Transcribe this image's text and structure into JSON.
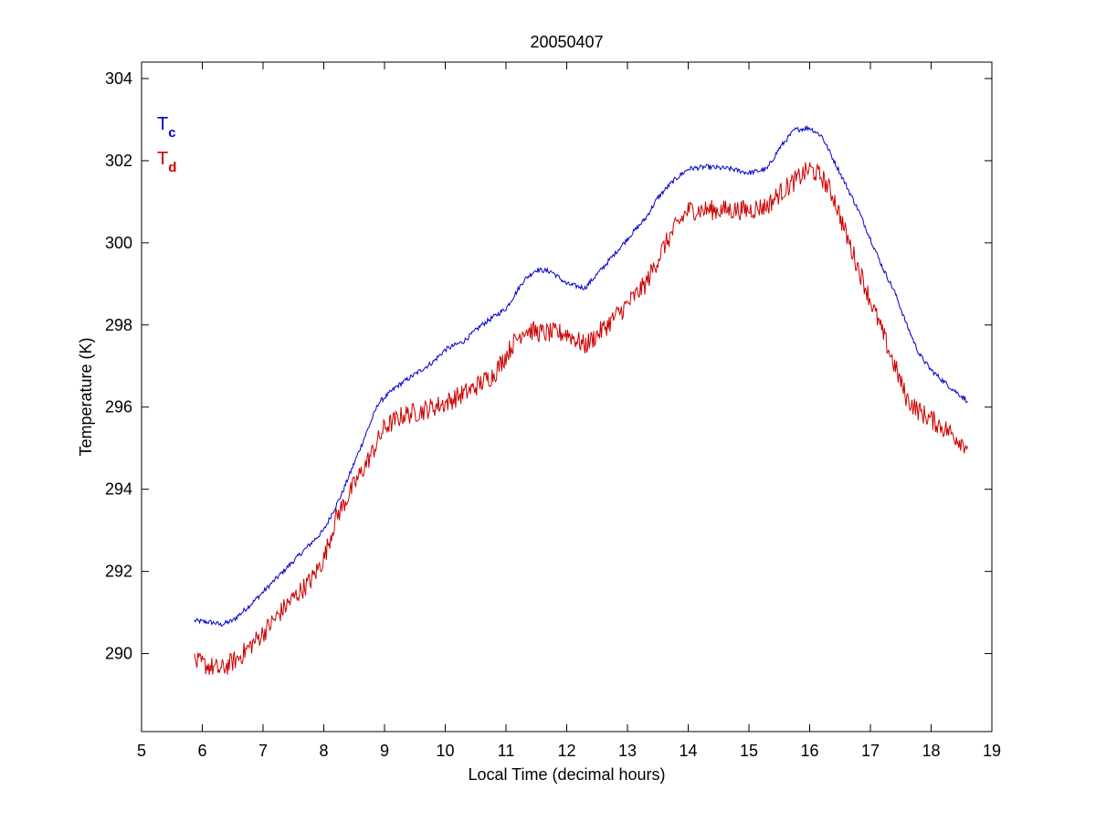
{
  "chart_data": {
    "type": "line",
    "title": "20050407",
    "xlabel": "Local Time (decimal hours)",
    "ylabel": "Temperature (K)",
    "xlim": [
      5,
      19
    ],
    "ylim": [
      288.1,
      304.4
    ],
    "xticks": [
      5,
      6,
      7,
      8,
      9,
      10,
      11,
      12,
      13,
      14,
      15,
      16,
      17,
      18,
      19
    ],
    "yticks": [
      290,
      292,
      294,
      296,
      298,
      300,
      302,
      304
    ],
    "grid": false,
    "legend_placement": "top-left",
    "series": [
      {
        "name": "T",
        "subscript": "c",
        "color": "#0000cc",
        "noise": 0.06,
        "x": [
          5.87,
          6.2,
          6.3,
          6.5,
          6.8,
          7.2,
          7.6,
          8.0,
          8.3,
          8.6,
          8.9,
          9.2,
          9.5,
          9.8,
          10.0,
          10.3,
          10.6,
          11.0,
          11.3,
          11.5,
          11.75,
          12.0,
          12.3,
          12.6,
          13.0,
          13.3,
          13.5,
          13.75,
          14.0,
          14.3,
          14.7,
          15.0,
          15.3,
          15.5,
          15.75,
          16.0,
          16.2,
          16.4,
          16.6,
          16.8,
          17.0,
          17.2,
          17.4,
          17.6,
          17.8,
          18.0,
          18.3,
          18.6
        ],
        "y": [
          290.8,
          290.75,
          290.7,
          290.8,
          291.2,
          291.8,
          292.4,
          293.0,
          293.9,
          295.0,
          296.1,
          296.5,
          296.8,
          297.1,
          297.4,
          297.6,
          298.0,
          298.4,
          299.1,
          299.35,
          299.3,
          299.0,
          298.9,
          299.4,
          300.1,
          300.6,
          301.1,
          301.5,
          301.8,
          301.85,
          301.8,
          301.7,
          301.8,
          302.3,
          302.75,
          302.8,
          302.6,
          302.0,
          301.4,
          300.8,
          300.1,
          299.4,
          298.8,
          298.0,
          297.3,
          296.9,
          296.5,
          296.15
        ]
      },
      {
        "name": "T",
        "subscript": "d",
        "color": "#cc0000",
        "noise": 0.25,
        "x": [
          5.87,
          6.1,
          6.3,
          6.6,
          7.0,
          7.4,
          7.8,
          8.0,
          8.2,
          8.5,
          8.8,
          9.0,
          9.3,
          9.6,
          10.0,
          10.4,
          10.8,
          11.1,
          11.3,
          11.6,
          12.0,
          12.3,
          12.6,
          13.0,
          13.3,
          13.6,
          13.8,
          14.0,
          14.3,
          14.6,
          15.0,
          15.3,
          15.5,
          15.75,
          16.0,
          16.2,
          16.4,
          16.6,
          16.8,
          17.0,
          17.2,
          17.4,
          17.6,
          17.8,
          18.0,
          18.3,
          18.6
        ],
        "y": [
          289.8,
          289.7,
          289.6,
          289.9,
          290.5,
          291.2,
          291.8,
          292.3,
          293.3,
          294.1,
          294.9,
          295.5,
          295.8,
          295.9,
          296.1,
          296.4,
          296.8,
          297.5,
          297.9,
          297.8,
          297.8,
          297.5,
          297.9,
          298.5,
          299.0,
          299.9,
          300.4,
          300.8,
          300.8,
          300.8,
          300.8,
          300.9,
          301.2,
          301.5,
          301.8,
          301.6,
          301.1,
          300.2,
          299.4,
          298.6,
          297.8,
          297.0,
          296.2,
          295.9,
          295.7,
          295.4,
          295.05
        ]
      }
    ]
  }
}
